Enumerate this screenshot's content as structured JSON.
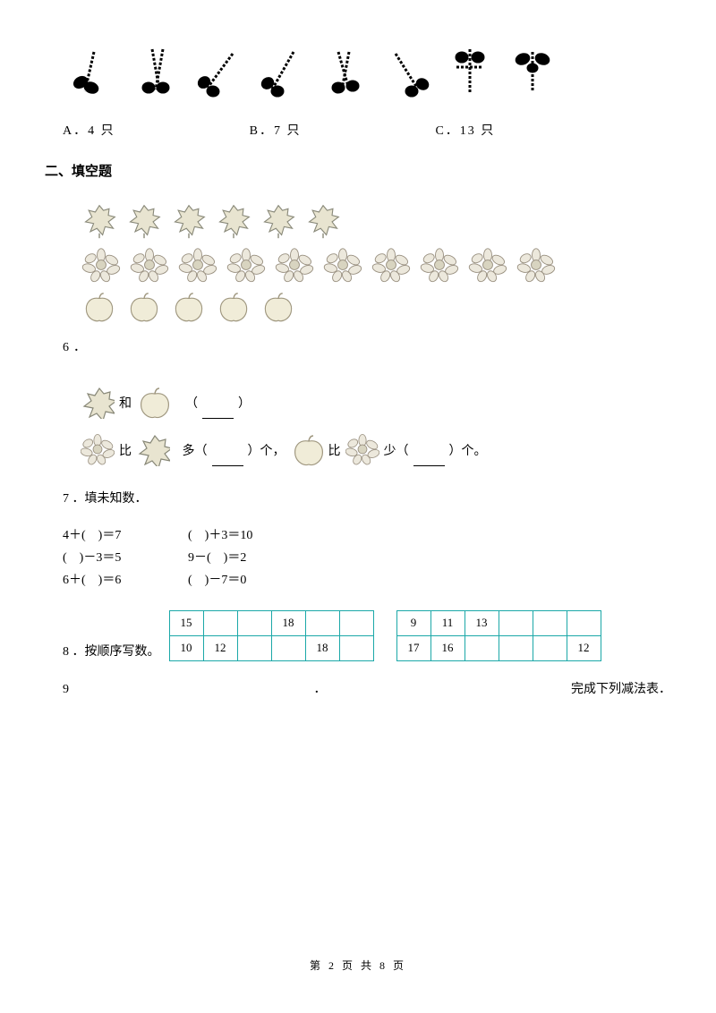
{
  "dragonfly_count": 8,
  "options": {
    "a": "A．4 只",
    "b": "B．7 只",
    "c": "C．13 只"
  },
  "section2_title": "二、填空题",
  "q6": {
    "number": "6",
    "dot": "．",
    "leaves_count": 6,
    "flowers_count": 10,
    "apples_count": 5,
    "and_text": "和",
    "paren_open": "（",
    "paren_close": "）",
    "compare_more_1": "比",
    "compare_more_2": "多（",
    "compare_more_3": "）个，",
    "compare_less_1": "比",
    "compare_less_2": "少（",
    "compare_less_3": "）个。"
  },
  "q7": {
    "title": "7 ．填未知数．",
    "rows": [
      {
        "left": "4＋(　)＝7",
        "right": "(　)＋3＝10"
      },
      {
        "left": "(　)－3＝5",
        "right": "9－(　)＝2"
      },
      {
        "left": "6＋(　)＝6",
        "right": "(　)－7＝0"
      }
    ]
  },
  "q8": {
    "label": "8 ．按顺序写数。",
    "table1": {
      "row1": [
        "15",
        "",
        "",
        "18",
        "",
        ""
      ],
      "row2": [
        "10",
        "12",
        "",
        "",
        "18",
        ""
      ]
    },
    "table2": {
      "row1": [
        "9",
        "11",
        "13",
        "",
        "",
        ""
      ],
      "row2": [
        "17",
        "16",
        "",
        "",
        "",
        "12"
      ]
    },
    "border_color": "#1ba8a8"
  },
  "q9": {
    "number": "9",
    "dot": "．",
    "text": "完成下列减法表．"
  },
  "footer": "第 2 页 共 8 页",
  "colors": {
    "leaf_fill": "#e8e4d0",
    "leaf_stroke": "#888878",
    "flower_fill": "#ece8dc",
    "flower_stroke": "#999080",
    "apple_fill": "#f0ecd8",
    "apple_stroke": "#a09880"
  }
}
